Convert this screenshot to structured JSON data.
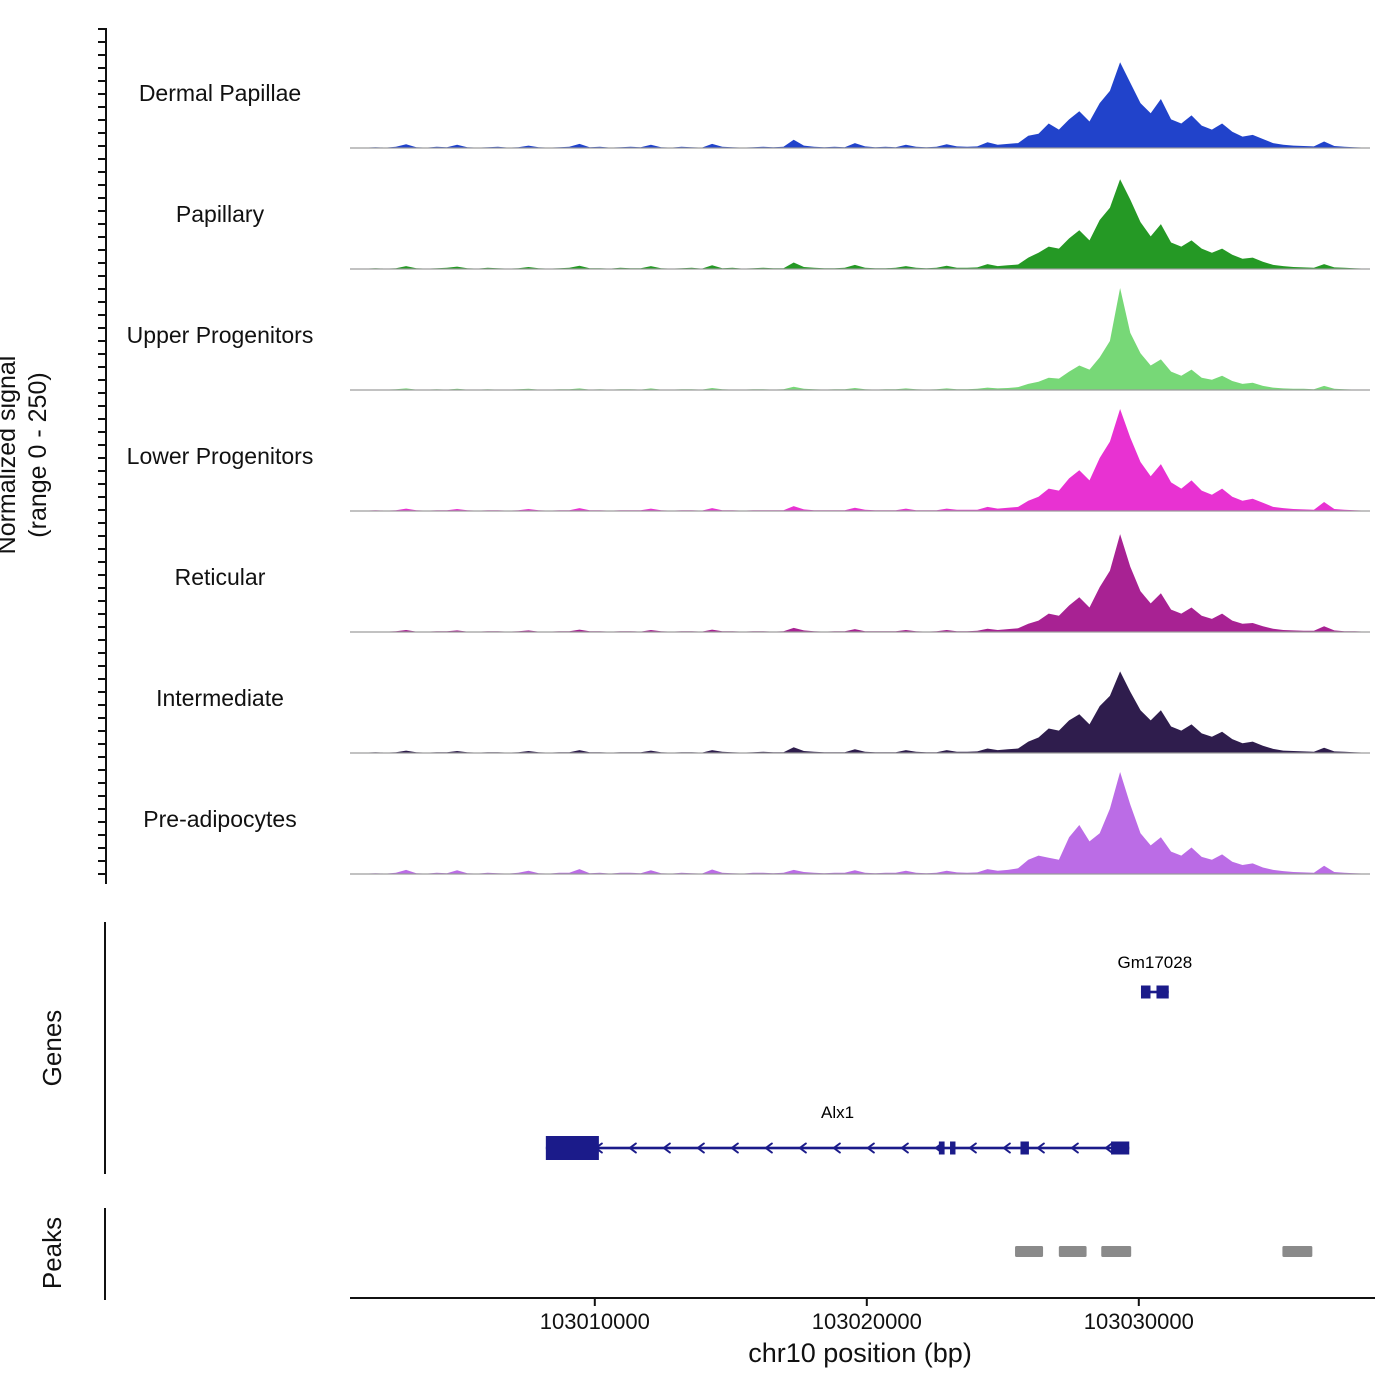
{
  "y_axis": {
    "line1": "Normalized signal",
    "line2": "(range 0 - 250)"
  },
  "sections": {
    "genes": "Genes",
    "peaks": "Peaks"
  },
  "x_axis": {
    "label": "chr10 position (bp)",
    "tick_values": [
      103010000,
      103020000,
      103030000
    ]
  },
  "chart_data": {
    "type": "area",
    "title": "ATAC/ChIP-style normalized signal tracks over chr10 locus",
    "ylim": [
      0,
      250
    ],
    "x_domain_bp": [
      103001000,
      103038500
    ],
    "bin_size_bp": 375,
    "axis_color": "#111111",
    "baseline_color": "#999999",
    "gene_color": "#1b1b8a",
    "peak_color": "#8a8a8a",
    "tracks": [
      {
        "name": "Dermal Papillae",
        "color": "#2143cb",
        "values": [
          0,
          1,
          2,
          1,
          3,
          9,
          2,
          1,
          3,
          2,
          8,
          2,
          1,
          2,
          3,
          1,
          2,
          6,
          2,
          1,
          2,
          3,
          10,
          2,
          3,
          1,
          2,
          3,
          2,
          8,
          2,
          1,
          3,
          2,
          1,
          10,
          3,
          2,
          1,
          2,
          3,
          2,
          3,
          20,
          6,
          3,
          2,
          3,
          2,
          12,
          4,
          2,
          3,
          2,
          8,
          3,
          2,
          3,
          9,
          4,
          3,
          4,
          14,
          8,
          10,
          12,
          30,
          35,
          60,
          45,
          70,
          90,
          65,
          110,
          140,
          210,
          160,
          110,
          85,
          120,
          70,
          60,
          80,
          55,
          45,
          60,
          40,
          28,
          32,
          22,
          12,
          8,
          6,
          5,
          4,
          16,
          5,
          3,
          2,
          1
        ]
      },
      {
        "name": "Papillary",
        "color": "#259925",
        "values": [
          0,
          1,
          2,
          1,
          2,
          7,
          2,
          1,
          2,
          3,
          6,
          2,
          1,
          3,
          2,
          1,
          2,
          5,
          2,
          1,
          2,
          3,
          8,
          2,
          2,
          1,
          3,
          2,
          2,
          7,
          2,
          1,
          2,
          3,
          1,
          9,
          2,
          3,
          1,
          2,
          3,
          2,
          2,
          16,
          5,
          3,
          2,
          2,
          3,
          10,
          3,
          2,
          2,
          3,
          7,
          3,
          2,
          3,
          8,
          3,
          3,
          4,
          12,
          7,
          9,
          11,
          28,
          40,
          55,
          50,
          75,
          95,
          70,
          120,
          150,
          220,
          170,
          115,
          80,
          110,
          65,
          55,
          70,
          50,
          40,
          50,
          35,
          25,
          28,
          18,
          10,
          7,
          5,
          4,
          3,
          12,
          4,
          3,
          2,
          1
        ]
      },
      {
        "name": "Upper Progenitors",
        "color": "#77d877",
        "values": [
          0,
          1,
          1,
          1,
          2,
          4,
          1,
          1,
          2,
          1,
          3,
          1,
          1,
          2,
          1,
          1,
          2,
          3,
          1,
          1,
          2,
          2,
          4,
          1,
          2,
          1,
          2,
          2,
          1,
          4,
          1,
          1,
          2,
          2,
          1,
          5,
          2,
          1,
          1,
          2,
          2,
          1,
          2,
          8,
          3,
          2,
          1,
          2,
          2,
          5,
          2,
          1,
          2,
          2,
          4,
          2,
          1,
          2,
          4,
          2,
          2,
          3,
          6,
          4,
          5,
          7,
          15,
          20,
          30,
          28,
          45,
          60,
          50,
          80,
          120,
          250,
          140,
          90,
          60,
          75,
          45,
          35,
          50,
          30,
          25,
          35,
          22,
          15,
          18,
          10,
          6,
          4,
          3,
          3,
          2,
          10,
          3,
          2,
          1,
          1
        ]
      },
      {
        "name": "Lower Progenitors",
        "color": "#e832d2",
        "values": [
          0,
          1,
          2,
          1,
          2,
          6,
          2,
          1,
          2,
          2,
          5,
          2,
          1,
          2,
          2,
          1,
          2,
          5,
          2,
          1,
          2,
          2,
          7,
          2,
          2,
          1,
          2,
          2,
          2,
          6,
          2,
          1,
          2,
          2,
          1,
          7,
          2,
          2,
          1,
          2,
          2,
          2,
          2,
          12,
          4,
          2,
          2,
          2,
          2,
          8,
          3,
          2,
          2,
          2,
          6,
          2,
          2,
          2,
          6,
          3,
          3,
          3,
          10,
          6,
          8,
          10,
          25,
          35,
          55,
          50,
          80,
          100,
          75,
          130,
          170,
          250,
          180,
          120,
          85,
          115,
          70,
          55,
          75,
          50,
          40,
          55,
          35,
          25,
          30,
          20,
          10,
          7,
          5,
          4,
          3,
          22,
          5,
          3,
          2,
          1
        ]
      },
      {
        "name": "Reticular",
        "color": "#a82293",
        "values": [
          0,
          1,
          1,
          1,
          2,
          5,
          1,
          1,
          2,
          2,
          4,
          1,
          1,
          2,
          2,
          1,
          2,
          4,
          1,
          1,
          2,
          2,
          6,
          2,
          2,
          1,
          2,
          2,
          1,
          5,
          2,
          1,
          2,
          2,
          1,
          6,
          2,
          2,
          1,
          2,
          2,
          1,
          2,
          10,
          4,
          2,
          1,
          2,
          2,
          7,
          2,
          2,
          2,
          2,
          5,
          2,
          1,
          2,
          5,
          2,
          2,
          3,
          8,
          5,
          7,
          9,
          20,
          28,
          45,
          40,
          65,
          85,
          60,
          110,
          150,
          240,
          160,
          100,
          70,
          95,
          55,
          45,
          60,
          40,
          32,
          45,
          28,
          20,
          22,
          14,
          8,
          5,
          4,
          3,
          3,
          14,
          4,
          2,
          2,
          1
        ]
      },
      {
        "name": "Intermediate",
        "color": "#2f1d4d",
        "values": [
          0,
          1,
          2,
          1,
          2,
          6,
          2,
          1,
          2,
          2,
          5,
          2,
          1,
          2,
          2,
          1,
          2,
          5,
          2,
          1,
          2,
          2,
          7,
          2,
          2,
          1,
          2,
          2,
          2,
          6,
          2,
          1,
          2,
          2,
          1,
          7,
          3,
          2,
          1,
          2,
          3,
          2,
          2,
          14,
          5,
          3,
          2,
          2,
          2,
          9,
          3,
          2,
          2,
          2,
          7,
          3,
          2,
          2,
          7,
          3,
          3,
          4,
          11,
          7,
          9,
          11,
          28,
          38,
          60,
          55,
          80,
          95,
          70,
          115,
          140,
          200,
          150,
          105,
          80,
          105,
          65,
          55,
          70,
          48,
          40,
          52,
          34,
          24,
          28,
          18,
          10,
          6,
          5,
          4,
          3,
          13,
          4,
          3,
          2,
          1
        ]
      },
      {
        "name": "Pre-adipocytes",
        "color": "#bb6ce6",
        "values": [
          0,
          1,
          2,
          1,
          3,
          10,
          2,
          1,
          3,
          2,
          9,
          2,
          1,
          3,
          2,
          1,
          3,
          8,
          2,
          1,
          3,
          3,
          12,
          2,
          3,
          1,
          3,
          3,
          2,
          9,
          2,
          1,
          3,
          2,
          1,
          11,
          3,
          2,
          1,
          3,
          3,
          2,
          3,
          10,
          5,
          3,
          2,
          3,
          3,
          9,
          3,
          2,
          3,
          3,
          8,
          3,
          2,
          3,
          8,
          4,
          3,
          4,
          12,
          8,
          10,
          14,
          35,
          45,
          40,
          35,
          90,
          120,
          80,
          100,
          160,
          250,
          170,
          100,
          70,
          90,
          55,
          45,
          65,
          42,
          35,
          48,
          30,
          22,
          26,
          16,
          10,
          7,
          5,
          4,
          3,
          20,
          5,
          3,
          2,
          1
        ]
      }
    ],
    "genes": [
      {
        "name": "Gm17028",
        "start": 103030080,
        "end": 103031100,
        "strand": "-",
        "row": 0,
        "exons": [
          [
            103030080,
            103030430
          ],
          [
            103030650,
            103031100
          ]
        ]
      },
      {
        "name": "Alx1",
        "start": 103008200,
        "end": 103029650,
        "strand": "-",
        "row": 1,
        "exons": [
          [
            103008200,
            103010150
          ],
          [
            103022650,
            103022860
          ],
          [
            103023060,
            103023260
          ],
          [
            103025650,
            103025960
          ],
          [
            103028980,
            103029650
          ]
        ]
      }
    ],
    "peaks": [
      [
        103025450,
        103026480
      ],
      [
        103027060,
        103028080
      ],
      [
        103028620,
        103029720
      ],
      [
        103035280,
        103036380
      ]
    ]
  }
}
